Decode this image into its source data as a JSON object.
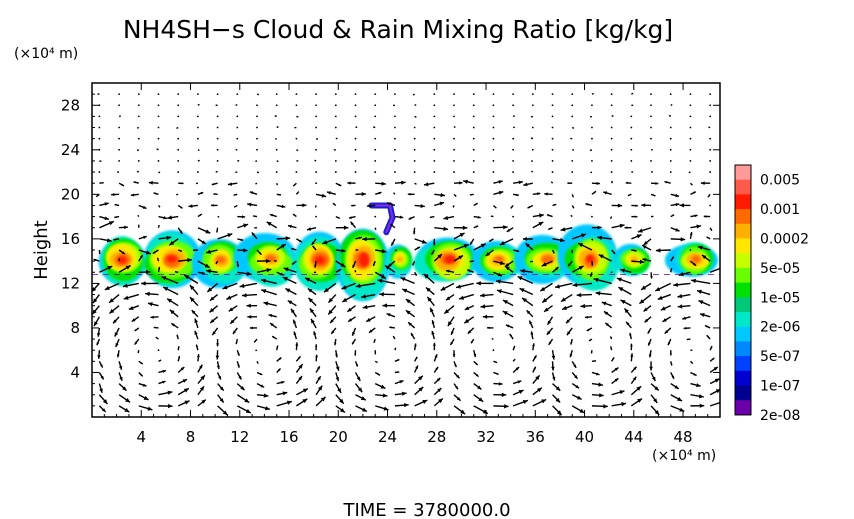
{
  "chart_data": {
    "type": "heatmap",
    "title": "NH4SH−s Cloud & Rain Mixing Ratio [kg/kg]",
    "ylabel": "Height",
    "y_unit": "(×10⁴ m)",
    "x_unit": "(×10⁴ m)",
    "footer": "TIME = 3780000.0",
    "xlim": [
      0,
      51
    ],
    "ylim": [
      0,
      30
    ],
    "x_ticks": [
      4,
      8,
      12,
      16,
      20,
      24,
      28,
      32,
      36,
      40,
      44,
      48
    ],
    "y_ticks": [
      4,
      8,
      12,
      16,
      20,
      24,
      28
    ],
    "colorbar": {
      "labels": [
        "0.005",
        "0.001",
        "0.0002",
        "5e-05",
        "1e-05",
        "2e-06",
        "5e-07",
        "1e-07",
        "2e-08"
      ],
      "colors": [
        "#ff9a9a",
        "#ff5a4a",
        "#ff1a00",
        "#ff6a00",
        "#ffb000",
        "#ffe800",
        "#c8ff00",
        "#6aff00",
        "#00e000",
        "#00c878",
        "#00e8c8",
        "#00c8ff",
        "#0088ff",
        "#0040ff",
        "#0000d0",
        "#000090",
        "#6a00a8"
      ]
    },
    "cloud_layer": {
      "base_height": 12.8,
      "top_height": 16.5,
      "core_height": 14.2,
      "cells": [
        {
          "x": 2.5,
          "w": 2.2,
          "peak": 1.4
        },
        {
          "x": 6.5,
          "w": 2.6,
          "peak": 1.5
        },
        {
          "x": 10.5,
          "w": 2.0,
          "peak": 1.2
        },
        {
          "x": 14.5,
          "w": 2.4,
          "peak": 1.3
        },
        {
          "x": 18.5,
          "w": 2.4,
          "peak": 1.5
        },
        {
          "x": 22.0,
          "w": 2.0,
          "peak": 1.8
        },
        {
          "x": 25.0,
          "w": 1.2,
          "peak": 0.9
        },
        {
          "x": 29.0,
          "w": 2.6,
          "peak": 1.4
        },
        {
          "x": 33.0,
          "w": 2.2,
          "peak": 1.1
        },
        {
          "x": 37.0,
          "w": 2.4,
          "peak": 1.2
        },
        {
          "x": 40.5,
          "w": 2.2,
          "peak": 1.5
        },
        {
          "x": 44.0,
          "w": 1.6,
          "peak": 0.9
        },
        {
          "x": 49.0,
          "w": 2.0,
          "peak": 1.1
        }
      ],
      "plume": {
        "x": 23.5,
        "y": 19.0
      }
    },
    "wind_field": {
      "x_spacing": 1.6,
      "y_levels": [
        1,
        2,
        3,
        4,
        5,
        6,
        7,
        8,
        9,
        10,
        11,
        12,
        13,
        14,
        15,
        16,
        17,
        18,
        19,
        20,
        21,
        22,
        23,
        24,
        25,
        26,
        27,
        28,
        29
      ],
      "circulation_centers_x": [
        5,
        14,
        24,
        33,
        41,
        49
      ]
    }
  }
}
